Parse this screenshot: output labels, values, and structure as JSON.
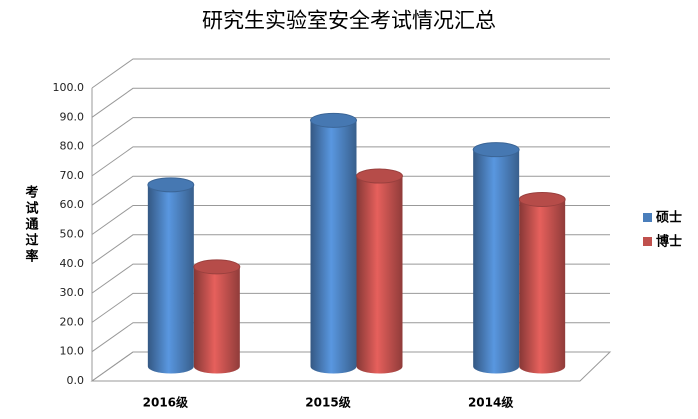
{
  "chart_data": {
    "type": "bar3d",
    "title": "研究生实验室安全考试情况汇总",
    "y_label": "考试通过率",
    "categories": [
      "2016级",
      "2015级",
      "2014级"
    ],
    "series": [
      {
        "name": "硕士",
        "color": "#4a7ebb",
        "values": [
          62,
          84,
          74
        ]
      },
      {
        "name": "博士",
        "color": "#c0504d",
        "values": [
          34,
          65,
          57
        ]
      }
    ],
    "ylim": [
      0,
      100
    ],
    "yticks": [
      {
        "value": 0,
        "label": "0.0"
      },
      {
        "value": 10,
        "label": "10.0"
      },
      {
        "value": 20,
        "label": "20.0"
      },
      {
        "value": 30,
        "label": "30.0"
      },
      {
        "value": 40,
        "label": "40.0"
      },
      {
        "value": 50,
        "label": "50.0"
      },
      {
        "value": 60,
        "label": "60.0"
      },
      {
        "value": 70,
        "label": "70.0"
      },
      {
        "value": 80,
        "label": "80.0"
      },
      {
        "value": 90,
        "label": "90.0"
      },
      {
        "value": 100,
        "label": "100.0"
      }
    ],
    "grid": true,
    "legend": "right"
  }
}
